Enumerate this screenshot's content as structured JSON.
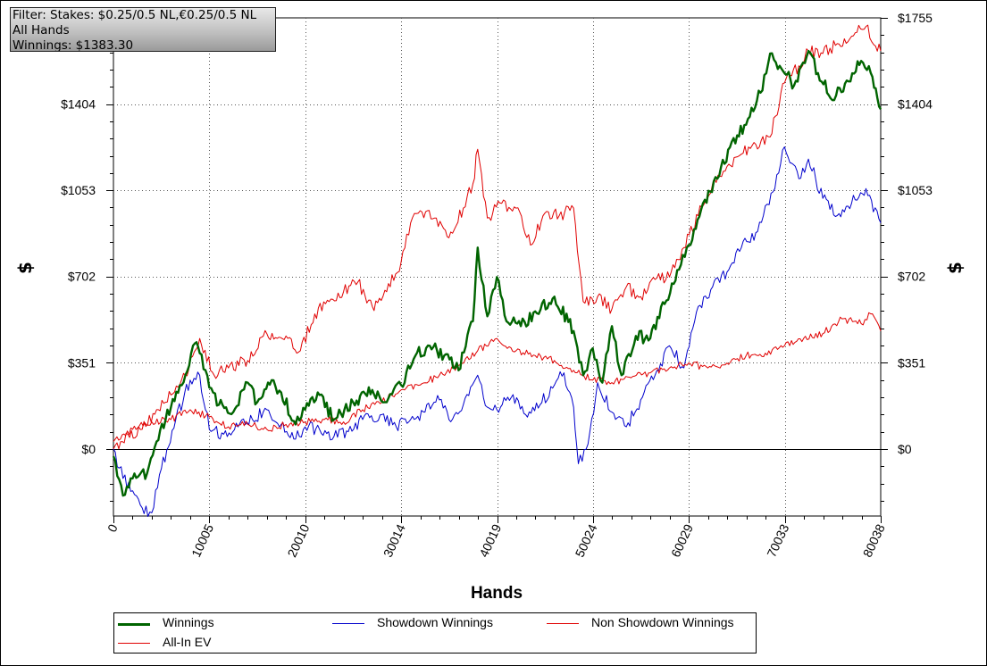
{
  "filter_box": {
    "line1": "Filter: Stakes: $0.25/0.5 NL,€0.25/0.5 NL",
    "line2": "All Hands",
    "line3": "Winnings: $1383.30"
  },
  "colors": {
    "winnings": "#006400",
    "showdown": "#0000cc",
    "non_showdown": "#e00000",
    "allin_ev": "#e00000"
  },
  "chart_data": {
    "type": "line",
    "xlabel": "Hands",
    "ylabel": "$",
    "ylabel_right": "$",
    "xlim": [
      0,
      80038
    ],
    "ylim": [
      -273,
      1755
    ],
    "x_ticks": [
      0,
      10005,
      20010,
      30014,
      40019,
      50024,
      60029,
      70033,
      80038
    ],
    "x_tick_labels": [
      "0",
      "10005",
      "20010",
      "30014",
      "40019",
      "50024",
      "60029",
      "70033",
      "80038"
    ],
    "y_ticks": [
      0,
      351,
      702,
      1053,
      1404,
      1755
    ],
    "y_tick_labels": [
      "$0",
      "$351",
      "$702",
      "$1053",
      "$1404",
      "$1755"
    ],
    "grid": true,
    "legend_position": "bottom",
    "series": [
      {
        "name": "Winnings",
        "color": "#006400",
        "x": [
          0,
          1000,
          2000,
          3500,
          4500,
          6000,
          7500,
          8500,
          9000,
          10000,
          11000,
          12500,
          14000,
          15000,
          16500,
          17500,
          19000,
          20000,
          21500,
          23000,
          25000,
          27000,
          28500,
          30000,
          31500,
          33000,
          34500,
          36000,
          37500,
          38000,
          39000,
          40000,
          41000,
          42500,
          44000,
          46000,
          48000,
          49000,
          50000,
          51000,
          52000,
          53000,
          54500,
          56000,
          57500,
          59000,
          60000,
          61500,
          63000,
          64500,
          66000,
          67500,
          68500,
          69500,
          71000,
          72500,
          73500,
          75000,
          76500,
          78000,
          79000,
          80038
        ],
        "values": [
          -30,
          -190,
          -120,
          -100,
          30,
          170,
          300,
          430,
          390,
          250,
          180,
          150,
          270,
          190,
          280,
          230,
          100,
          160,
          220,
          120,
          190,
          240,
          190,
          260,
          380,
          420,
          380,
          320,
          520,
          820,
          540,
          700,
          520,
          500,
          560,
          620,
          480,
          300,
          410,
          270,
          500,
          300,
          460,
          450,
          590,
          730,
          830,
          1000,
          1100,
          1250,
          1320,
          1450,
          1610,
          1560,
          1480,
          1620,
          1530,
          1420,
          1500,
          1580,
          1530,
          1383
        ]
      },
      {
        "name": "Showdown Winnings",
        "color": "#0000cc",
        "x": [
          0,
          1000,
          2000,
          3000,
          4000,
          5000,
          6500,
          8000,
          9000,
          10000,
          11500,
          13000,
          14500,
          16000,
          17500,
          19000,
          20000,
          21500,
          23000,
          24500,
          26000,
          28000,
          29500,
          31000,
          32500,
          34000,
          35000,
          36500,
          38000,
          39000,
          40000,
          41500,
          43000,
          44500,
          46000,
          47000,
          48000,
          48500,
          49500,
          50500,
          52000,
          53500,
          55000,
          56500,
          58000,
          59500,
          61000,
          62500,
          64000,
          65500,
          67000,
          68000,
          69000,
          70000,
          71500,
          72500,
          74000,
          75500,
          77000,
          78500,
          80038
        ],
        "values": [
          0,
          -120,
          -170,
          -240,
          -260,
          -80,
          120,
          280,
          300,
          80,
          60,
          90,
          120,
          160,
          100,
          40,
          90,
          80,
          50,
          70,
          120,
          140,
          90,
          120,
          150,
          200,
          120,
          180,
          300,
          170,
          160,
          210,
          140,
          180,
          260,
          310,
          170,
          -60,
          20,
          270,
          150,
          90,
          200,
          300,
          420,
          330,
          580,
          660,
          720,
          820,
          880,
          990,
          1060,
          1230,
          1100,
          1180,
          1020,
          950,
          1000,
          1060,
          920
        ]
      },
      {
        "name": "Non Showdown Winnings",
        "color": "#e00000",
        "x": [
          0,
          2000,
          4000,
          6000,
          8000,
          10000,
          12000,
          14000,
          16000,
          18000,
          20000,
          22000,
          24000,
          26000,
          28000,
          30000,
          32000,
          34000,
          36000,
          38000,
          40000,
          42000,
          44000,
          46000,
          48000,
          50000,
          52000,
          54000,
          56000,
          58000,
          60000,
          62000,
          64000,
          66000,
          68000,
          70000,
          72000,
          74000,
          76000,
          78000,
          79000,
          80038
        ],
        "values": [
          30,
          80,
          110,
          120,
          160,
          130,
          90,
          100,
          80,
          100,
          110,
          120,
          110,
          160,
          190,
          240,
          260,
          300,
          340,
          400,
          450,
          400,
          380,
          360,
          320,
          280,
          270,
          290,
          310,
          330,
          350,
          330,
          350,
          380,
          390,
          420,
          450,
          470,
          530,
          510,
          550,
          480
        ]
      },
      {
        "name": "All-In EV",
        "color": "#e00000",
        "x": [
          0,
          1500,
          3000,
          4500,
          6000,
          7500,
          9000,
          10500,
          12000,
          14000,
          16000,
          18000,
          19500,
          21000,
          22500,
          24000,
          25500,
          27000,
          28500,
          30000,
          31000,
          32000,
          33500,
          35000,
          36500,
          37500,
          38000,
          39000,
          40500,
          42000,
          43500,
          45000,
          46500,
          48000,
          49000,
          50500,
          52000,
          53500,
          55000,
          56500,
          58000,
          59500,
          61000,
          62500,
          64000,
          65500,
          67000,
          68500,
          70000,
          71500,
          72500,
          74000,
          75500,
          77000,
          78500,
          79500,
          80038
        ],
        "values": [
          0,
          60,
          80,
          160,
          220,
          300,
          450,
          300,
          330,
          360,
          470,
          460,
          400,
          550,
          600,
          640,
          680,
          580,
          640,
          760,
          920,
          970,
          940,
          860,
          980,
          1080,
          1220,
          940,
          1000,
          980,
          830,
          960,
          950,
          980,
          600,
          620,
          570,
          660,
          620,
          690,
          700,
          820,
          950,
          1080,
          1150,
          1200,
          1240,
          1270,
          1490,
          1560,
          1620,
          1610,
          1650,
          1680,
          1720,
          1640,
          1620
        ]
      }
    ]
  }
}
